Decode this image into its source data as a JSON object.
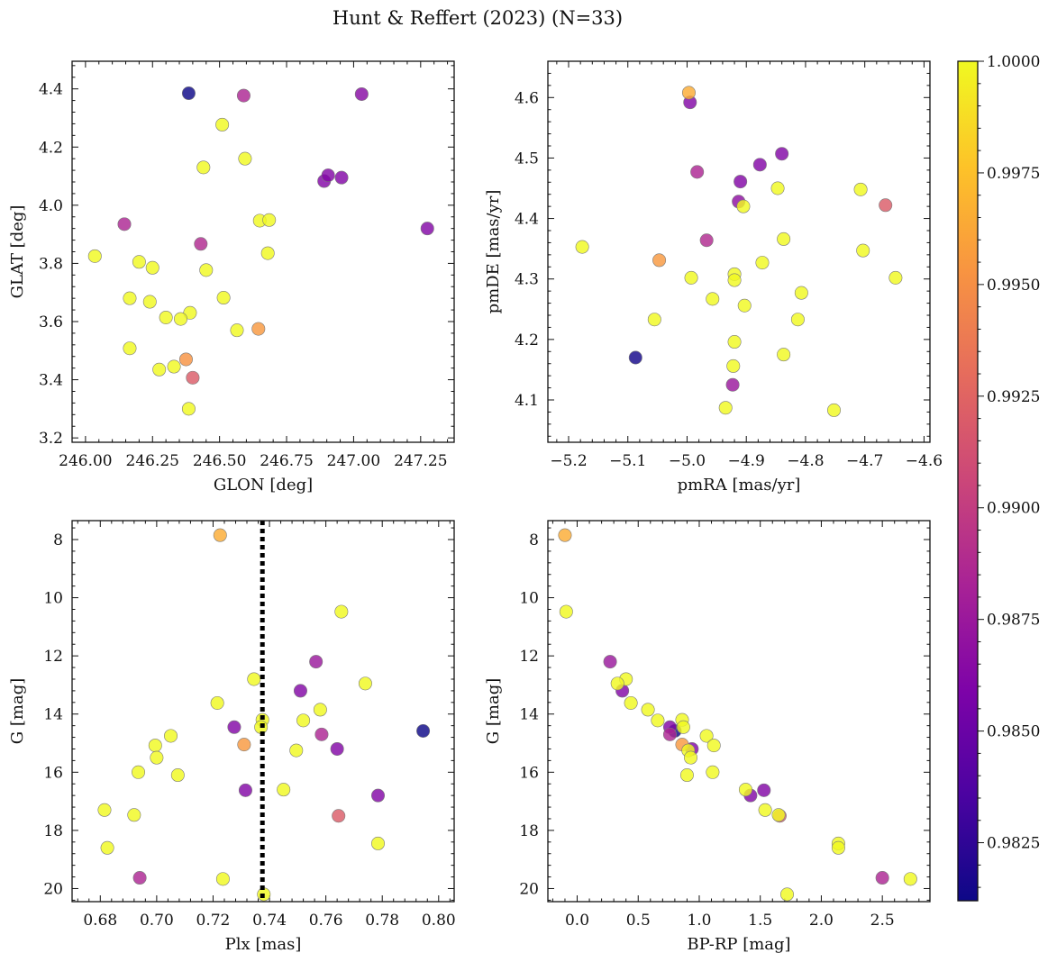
{
  "title": "Hunt & Reffert (2023) (N=33)",
  "chart_data": [
    {
      "type": "scatter",
      "id": "sky",
      "xlabel": "GLON [deg]",
      "ylabel": "GLAT [deg]",
      "xlim": [
        245.95,
        247.375
      ],
      "ylim": [
        3.185,
        4.495
      ],
      "xticks": [
        246.0,
        246.25,
        246.5,
        246.75,
        247.0,
        247.25
      ],
      "xtick_labels": [
        "246.00",
        "246.25",
        "246.50",
        "246.75",
        "247.00",
        "247.25"
      ],
      "yticks": [
        3.2,
        3.4,
        3.6,
        3.8,
        4.0,
        4.2,
        4.4
      ],
      "ytick_labels": [
        "3.2",
        "3.4",
        "3.6",
        "3.8",
        "4.0",
        "4.2",
        "4.4"
      ],
      "points": [
        [
          246.385,
          4.385,
          0.9812
        ],
        [
          246.59,
          4.377,
          0.9885
        ],
        [
          247.03,
          4.382,
          0.9865
        ],
        [
          246.51,
          4.277,
          1.0
        ],
        [
          246.595,
          4.16,
          1.0
        ],
        [
          246.44,
          4.13,
          1.0
        ],
        [
          246.89,
          4.083,
          0.9862
        ],
        [
          246.905,
          4.103,
          0.9862
        ],
        [
          246.955,
          4.095,
          0.9862
        ],
        [
          246.65,
          3.947,
          1.0
        ],
        [
          246.685,
          3.949,
          1.0
        ],
        [
          246.145,
          3.935,
          0.9885
        ],
        [
          247.275,
          3.92,
          0.9862
        ],
        [
          246.43,
          3.867,
          0.9888
        ],
        [
          246.68,
          3.835,
          1.0
        ],
        [
          246.035,
          3.825,
          1.0
        ],
        [
          246.2,
          3.805,
          1.0
        ],
        [
          246.25,
          3.785,
          1.0
        ],
        [
          246.45,
          3.777,
          1.0
        ],
        [
          246.165,
          3.68,
          1.0
        ],
        [
          246.515,
          3.682,
          1.0
        ],
        [
          246.24,
          3.668,
          1.0
        ],
        [
          246.39,
          3.63,
          1.0
        ],
        [
          246.3,
          3.614,
          1.0
        ],
        [
          246.355,
          3.609,
          1.0
        ],
        [
          246.565,
          3.57,
          1.0
        ],
        [
          246.645,
          3.575,
          0.9955
        ],
        [
          246.165,
          3.508,
          1.0
        ],
        [
          246.375,
          3.47,
          0.9952
        ],
        [
          246.275,
          3.435,
          1.0
        ],
        [
          246.33,
          3.445,
          1.0
        ],
        [
          246.4,
          3.407,
          0.992
        ],
        [
          246.385,
          3.3,
          1.0
        ]
      ]
    },
    {
      "type": "scatter",
      "id": "proper-motion",
      "xlabel": "pmRA [mas/yr]",
      "ylabel": "pmDE [mas/yr]",
      "xlim": [
        -5.235,
        -4.59
      ],
      "ylim": [
        4.03,
        4.66
      ],
      "xticks": [
        -5.2,
        -5.1,
        -5.0,
        -4.9,
        -4.8,
        -4.7,
        -4.6
      ],
      "xtick_labels": [
        "−5.2",
        "−5.1",
        "−5.0",
        "−4.9",
        "−4.8",
        "−4.7",
        "−4.6"
      ],
      "yticks": [
        4.1,
        4.2,
        4.3,
        4.4,
        4.5,
        4.6
      ],
      "ytick_labels": [
        "4.1",
        "4.2",
        "4.3",
        "4.4",
        "4.5",
        "4.6"
      ],
      "points": [
        [
          -4.997,
          4.608,
          0.9965
        ],
        [
          -4.995,
          4.592,
          0.9862
        ],
        [
          -4.84,
          4.507,
          0.9862
        ],
        [
          -4.877,
          4.489,
          0.9862
        ],
        [
          -4.983,
          4.477,
          0.9885
        ],
        [
          -4.91,
          4.461,
          0.9862
        ],
        [
          -4.847,
          4.45,
          1.0
        ],
        [
          -4.707,
          4.448,
          1.0
        ],
        [
          -4.913,
          4.428,
          0.9868
        ],
        [
          -4.905,
          4.42,
          1.0
        ],
        [
          -4.665,
          4.422,
          0.992
        ],
        [
          -4.837,
          4.366,
          1.0
        ],
        [
          -4.967,
          4.364,
          0.9888
        ],
        [
          -5.177,
          4.353,
          1.0
        ],
        [
          -4.703,
          4.347,
          1.0
        ],
        [
          -5.047,
          4.331,
          0.9955
        ],
        [
          -4.873,
          4.327,
          1.0
        ],
        [
          -4.92,
          4.308,
          1.0
        ],
        [
          -4.993,
          4.302,
          1.0
        ],
        [
          -4.92,
          4.298,
          1.0
        ],
        [
          -4.648,
          4.302,
          1.0
        ],
        [
          -4.807,
          4.277,
          1.0
        ],
        [
          -4.957,
          4.267,
          1.0
        ],
        [
          -4.903,
          4.256,
          1.0
        ],
        [
          -5.055,
          4.233,
          1.0
        ],
        [
          -4.813,
          4.233,
          1.0
        ],
        [
          -4.92,
          4.196,
          1.0
        ],
        [
          -4.837,
          4.175,
          1.0
        ],
        [
          -5.087,
          4.17,
          0.9815
        ],
        [
          -4.922,
          4.156,
          1.0
        ],
        [
          -4.923,
          4.125,
          0.9875
        ],
        [
          -4.935,
          4.087,
          1.0
        ],
        [
          -4.752,
          4.083,
          1.0
        ]
      ]
    },
    {
      "type": "scatter",
      "id": "cmd-parallax",
      "xlabel": "Plx [mas]",
      "ylabel": "G [mag]",
      "xlim": [
        0.67,
        0.8055
      ],
      "ylim": [
        20.45,
        7.35
      ],
      "y_inverted": true,
      "vline": 0.7375,
      "vline_style": "dotted",
      "xticks": [
        0.68,
        0.7,
        0.72,
        0.74,
        0.76,
        0.78,
        0.8
      ],
      "xtick_labels": [
        "0.68",
        "0.70",
        "0.72",
        "0.74",
        "0.76",
        "0.78",
        "0.80"
      ],
      "yticks": [
        8,
        10,
        12,
        14,
        16,
        18,
        20
      ],
      "ytick_labels": [
        "8",
        "10",
        "12",
        "14",
        "16",
        "18",
        "20"
      ],
      "points": [
        [
          0.7225,
          7.85,
          0.9965
        ],
        [
          0.7655,
          10.48,
          1.0
        ],
        [
          0.7565,
          12.2,
          0.9875
        ],
        [
          0.7345,
          12.8,
          1.0
        ],
        [
          0.774,
          12.95,
          1.0
        ],
        [
          0.751,
          13.2,
          0.9862
        ],
        [
          0.7215,
          13.62,
          1.0
        ],
        [
          0.758,
          13.85,
          1.0
        ],
        [
          0.7375,
          14.2,
          1.0
        ],
        [
          0.752,
          14.22,
          1.0
        ],
        [
          0.7275,
          14.45,
          0.9862
        ],
        [
          0.737,
          14.45,
          1.0
        ],
        [
          0.7945,
          14.58,
          0.9812
        ],
        [
          0.7585,
          14.7,
          0.9885
        ],
        [
          0.705,
          14.75,
          1.0
        ],
        [
          0.6995,
          15.08,
          1.0
        ],
        [
          0.731,
          15.05,
          0.9955
        ],
        [
          0.764,
          15.2,
          0.9862
        ],
        [
          0.7495,
          15.25,
          1.0
        ],
        [
          0.7,
          15.5,
          1.0
        ],
        [
          0.6935,
          16.0,
          1.0
        ],
        [
          0.7075,
          16.1,
          1.0
        ],
        [
          0.745,
          16.6,
          1.0
        ],
        [
          0.7315,
          16.62,
          0.9862
        ],
        [
          0.7785,
          16.8,
          0.9862
        ],
        [
          0.6815,
          17.3,
          1.0
        ],
        [
          0.692,
          17.47,
          1.0
        ],
        [
          0.7645,
          17.5,
          0.992
        ],
        [
          0.7785,
          18.45,
          1.0
        ],
        [
          0.6825,
          18.6,
          1.0
        ],
        [
          0.694,
          19.63,
          0.9885
        ],
        [
          0.7235,
          19.67,
          1.0
        ],
        [
          0.738,
          20.2,
          1.0
        ]
      ]
    },
    {
      "type": "scatter",
      "id": "cmd-color",
      "xlabel": "BP-RP [mag]",
      "ylabel": "G [mag]",
      "xlim": [
        -0.24,
        2.89
      ],
      "ylim": [
        20.45,
        7.35
      ],
      "y_inverted": true,
      "xticks": [
        0.0,
        0.5,
        1.0,
        1.5,
        2.0,
        2.5
      ],
      "xtick_labels": [
        "0.0",
        "0.5",
        "1.0",
        "1.5",
        "2.0",
        "2.5"
      ],
      "yticks": [
        8,
        10,
        12,
        14,
        16,
        18,
        20
      ],
      "ytick_labels": [
        "8",
        "10",
        "12",
        "14",
        "16",
        "18",
        "20"
      ],
      "points": [
        [
          -0.1,
          7.85,
          0.9965
        ],
        [
          -0.09,
          10.48,
          1.0
        ],
        [
          0.27,
          12.2,
          0.9875
        ],
        [
          0.4,
          12.8,
          1.0
        ],
        [
          0.33,
          12.95,
          1.0
        ],
        [
          0.37,
          13.2,
          0.9862
        ],
        [
          0.44,
          13.62,
          1.0
        ],
        [
          0.58,
          13.85,
          1.0
        ],
        [
          0.86,
          14.2,
          1.0
        ],
        [
          0.66,
          14.22,
          1.0
        ],
        [
          0.76,
          14.45,
          0.9862
        ],
        [
          0.87,
          14.45,
          1.0
        ],
        [
          0.8,
          14.58,
          0.9812
        ],
        [
          0.76,
          14.7,
          0.9885
        ],
        [
          1.06,
          14.75,
          1.0
        ],
        [
          1.12,
          15.08,
          1.0
        ],
        [
          0.86,
          15.05,
          0.9955
        ],
        [
          0.94,
          15.2,
          0.9862
        ],
        [
          0.91,
          15.25,
          1.0
        ],
        [
          0.93,
          15.5,
          1.0
        ],
        [
          1.11,
          16.0,
          1.0
        ],
        [
          0.9,
          16.1,
          1.0
        ],
        [
          1.38,
          16.6,
          1.0
        ],
        [
          1.53,
          16.62,
          0.9862
        ],
        [
          1.42,
          16.8,
          0.9862
        ],
        [
          1.54,
          17.3,
          1.0
        ],
        [
          1.65,
          17.47,
          1.0
        ],
        [
          1.66,
          17.5,
          0.992
        ],
        [
          2.14,
          18.45,
          1.0
        ],
        [
          2.14,
          18.6,
          1.0
        ],
        [
          2.5,
          19.63,
          0.9885
        ],
        [
          2.73,
          19.67,
          1.0
        ],
        [
          1.72,
          20.2,
          1.0
        ]
      ]
    }
  ],
  "colorbar": {
    "colormap": "plasma",
    "vmin": 0.9812,
    "vmax": 1.0,
    "ticks": [
      0.9825,
      0.985,
      0.9875,
      0.99,
      0.9925,
      0.995,
      0.9975,
      1.0
    ],
    "tick_labels": [
      "0.9825",
      "0.9850",
      "0.9875",
      "0.9900",
      "0.9925",
      "0.9950",
      "0.9975",
      "1.0000"
    ],
    "point_alpha": 0.82,
    "marker_edge_color": "#7a7a7a"
  }
}
